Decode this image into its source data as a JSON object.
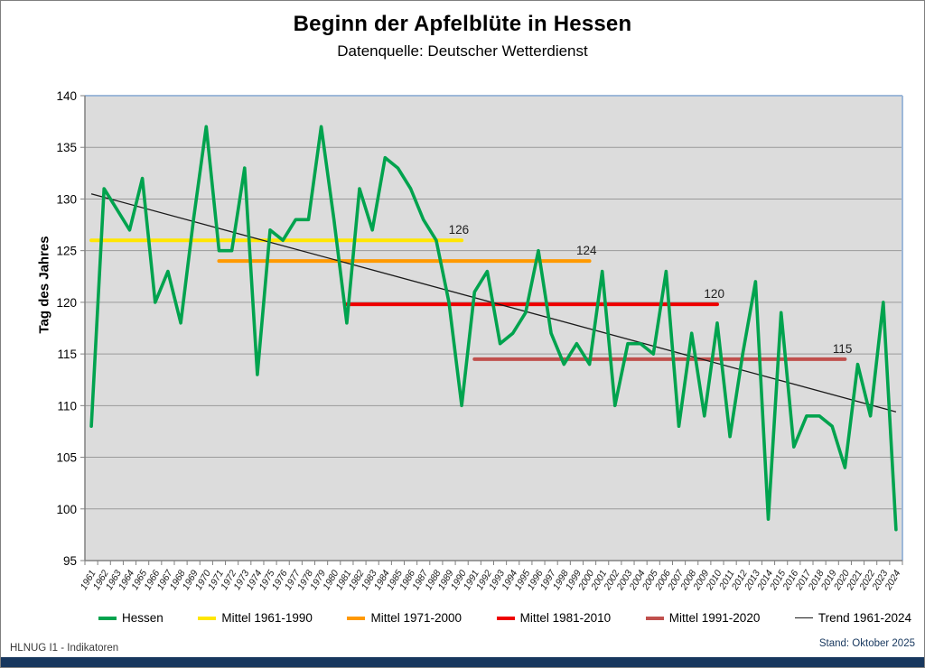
{
  "chart_data": {
    "type": "line",
    "title": "Beginn der Apfelblüte in Hessen",
    "subtitle": "Datenquelle: Deutscher Wetterdienst",
    "ylabel": "Tag des Jahres",
    "ylim": [
      95,
      140
    ],
    "ytick_step": 5,
    "grid": true,
    "legend_position": "bottom",
    "plot_bg": "#dcdcdc",
    "grid_color": "#9a9a9a",
    "axis_color": "#808080",
    "plot_border_color": "#9db8d9",
    "x": [
      1961,
      1962,
      1963,
      1964,
      1965,
      1966,
      1967,
      1968,
      1969,
      1970,
      1971,
      1972,
      1973,
      1974,
      1975,
      1976,
      1977,
      1978,
      1979,
      1980,
      1981,
      1982,
      1983,
      1984,
      1985,
      1986,
      1987,
      1988,
      1989,
      1990,
      1991,
      1992,
      1993,
      1994,
      1995,
      1996,
      1997,
      1998,
      1999,
      2000,
      2001,
      2002,
      2003,
      2004,
      2005,
      2006,
      2007,
      2008,
      2009,
      2010,
      2011,
      2012,
      2013,
      2014,
      2015,
      2016,
      2017,
      2018,
      2019,
      2020,
      2021,
      2022,
      2023,
      2024
    ],
    "series": [
      {
        "name": "Hessen",
        "kind": "data",
        "color": "#00a34e",
        "values": [
          108,
          131,
          129,
          127,
          132,
          120,
          123,
          118,
          128,
          137,
          125,
          125,
          133,
          113,
          127,
          126,
          128,
          128,
          137,
          128,
          118,
          131,
          127,
          134,
          133,
          131,
          128,
          126,
          120,
          110,
          121,
          123,
          116,
          117,
          119,
          125,
          117,
          114,
          116,
          114,
          123,
          110,
          116,
          116,
          115,
          123,
          108,
          117,
          109,
          118,
          107,
          115,
          122,
          99,
          119,
          106,
          109,
          109,
          108,
          104,
          114,
          109,
          120,
          98
        ]
      },
      {
        "name": "Mittel 1961-1990",
        "kind": "mean",
        "color": "#ffe600",
        "span": [
          1961,
          1990
        ],
        "value": 126,
        "label": "126"
      },
      {
        "name": "Mittel 1971-2000",
        "kind": "mean",
        "color": "#ff9900",
        "span": [
          1971,
          2000
        ],
        "value": 124,
        "label": "124"
      },
      {
        "name": "Mittel 1981-2010",
        "kind": "mean",
        "color": "#ee0000",
        "span": [
          1981,
          2010
        ],
        "value": 119.8,
        "label": "120"
      },
      {
        "name": "Mittel 1991-2020",
        "kind": "mean",
        "color": "#c0504d",
        "span": [
          1991,
          2020
        ],
        "value": 114.5,
        "label": "115"
      },
      {
        "name": "Trend 1961-2024",
        "kind": "trend",
        "color": "#1a1a1a",
        "start": [
          1961,
          130.5
        ],
        "end": [
          2024,
          109.4
        ]
      }
    ]
  },
  "footer": {
    "left": "HLNUG  I1 - Indikatoren",
    "right": "Stand: Oktober 2025"
  }
}
